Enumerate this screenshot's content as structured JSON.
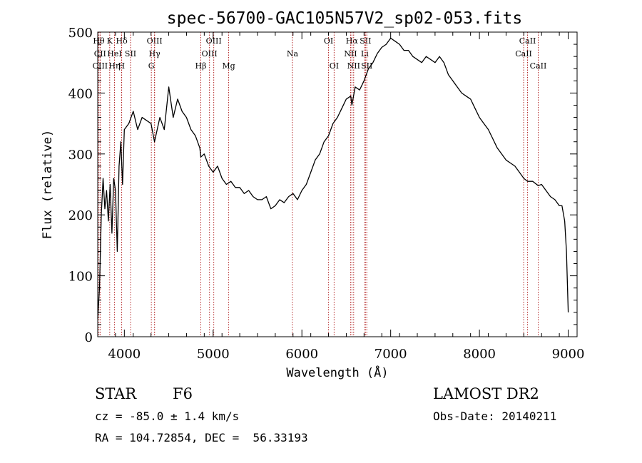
{
  "chart_data": {
    "type": "line",
    "title": "spec-56700-GAC105N57V2_sp02-053.fits",
    "xlabel": "Wavelength (Å)",
    "ylabel": "Flux (relative)",
    "xlim": [
      3700,
      9100
    ],
    "ylim": [
      0,
      500
    ],
    "x_ticks": [
      "4000",
      "5000",
      "6000",
      "7000",
      "8000",
      "9000"
    ],
    "y_ticks": [
      "0",
      "100",
      "200",
      "300",
      "400",
      "500"
    ],
    "grid": false,
    "series": [
      {
        "x": [
          3700,
          3720,
          3740,
          3760,
          3780,
          3800,
          3820,
          3840,
          3860,
          3880,
          3900,
          3920,
          3940,
          3960,
          3980,
          4000,
          4050,
          4100,
          4150,
          4200,
          4250,
          4300,
          4340,
          4400,
          4450,
          4500,
          4550,
          4600,
          4650,
          4700,
          4750,
          4800,
          4850,
          4861,
          4900,
          4950,
          5000,
          5050,
          5100,
          5150,
          5200,
          5250,
          5300,
          5350,
          5400,
          5450,
          5500,
          5550,
          5600,
          5650,
          5700,
          5750,
          5800,
          5850,
          5900,
          5950,
          6000,
          6050,
          6100,
          6150,
          6200,
          6250,
          6300,
          6350,
          6400,
          6450,
          6500,
          6550,
          6563,
          6600,
          6650,
          6700,
          6750,
          6800,
          6850,
          6900,
          6950,
          7000,
          7050,
          7100,
          7150,
          7200,
          7250,
          7300,
          7350,
          7400,
          7450,
          7500,
          7550,
          7600,
          7650,
          7700,
          7750,
          7800,
          7850,
          7900,
          7950,
          8000,
          8050,
          8100,
          8150,
          8200,
          8250,
          8300,
          8350,
          8400,
          8450,
          8500,
          8542,
          8600,
          8662,
          8700,
          8750,
          8800,
          8850,
          8900,
          8930,
          8960,
          8980,
          9000
        ],
        "y": [
          30,
          80,
          200,
          260,
          210,
          240,
          190,
          250,
          170,
          260,
          240,
          140,
          280,
          320,
          250,
          340,
          350,
          370,
          340,
          360,
          355,
          350,
          320,
          360,
          340,
          410,
          360,
          390,
          370,
          360,
          340,
          330,
          310,
          295,
          300,
          280,
          270,
          280,
          260,
          250,
          255,
          245,
          245,
          235,
          240,
          230,
          225,
          225,
          230,
          210,
          215,
          225,
          220,
          230,
          235,
          225,
          240,
          250,
          270,
          290,
          300,
          320,
          330,
          350,
          360,
          375,
          390,
          395,
          380,
          410,
          405,
          420,
          440,
          450,
          465,
          475,
          480,
          490,
          485,
          480,
          470,
          470,
          460,
          455,
          450,
          460,
          455,
          450,
          460,
          450,
          430,
          420,
          410,
          400,
          395,
          390,
          375,
          360,
          350,
          340,
          325,
          310,
          300,
          290,
          285,
          280,
          270,
          260,
          255,
          255,
          248,
          250,
          240,
          230,
          225,
          215,
          215,
          190,
          140,
          40
        ]
      }
    ],
    "lines_top": [
      {
        "x": 3712,
        "label": "Hθ"
      },
      {
        "x": 3835,
        "label": "K"
      },
      {
        "x": 3970,
        "label": "Hδ"
      },
      {
        "x": 4340,
        "label": "OIII"
      },
      {
        "x": 5007,
        "label": "OIII"
      },
      {
        "x": 6300,
        "label": "OI"
      },
      {
        "x": 6563,
        "label": "Hα"
      },
      {
        "x": 6716,
        "label": "SII"
      },
      {
        "x": 8542,
        "label": "CaII"
      }
    ],
    "lines_mid": [
      {
        "x": 3727,
        "label": "CII"
      },
      {
        "x": 3889,
        "label": "HeI"
      },
      {
        "x": 4070,
        "label": "SII"
      },
      {
        "x": 4340,
        "label": "Hγ"
      },
      {
        "x": 4959,
        "label": "OIII"
      },
      {
        "x": 5893,
        "label": "Na"
      },
      {
        "x": 6548,
        "label": "NII"
      },
      {
        "x": 6708,
        "label": "Li"
      },
      {
        "x": 8498,
        "label": "CaII"
      }
    ],
    "lines_low": [
      {
        "x": 3727,
        "label": "CIII"
      },
      {
        "x": 3889,
        "label": "Hη"
      },
      {
        "x": 3968,
        "label": "H"
      },
      {
        "x": 4304,
        "label": "G"
      },
      {
        "x": 4861,
        "label": "Hβ"
      },
      {
        "x": 5175,
        "label": "Mg"
      },
      {
        "x": 6363,
        "label": "OI"
      },
      {
        "x": 6583,
        "label": "NII"
      },
      {
        "x": 6731,
        "label": "SII"
      },
      {
        "x": 8662,
        "label": "CaII"
      }
    ],
    "line_style": {
      "color": "#b22222",
      "dash": "dotted"
    }
  },
  "footer": {
    "class_label": "STAR",
    "subclass_label": "F6",
    "survey": "LAMOST DR2",
    "cz": "cz = -85.0 ± 1.4 km/s",
    "obs_date": "Obs-Date: 20140211",
    "coords": "RA = 104.72854, DEC =  56.33193"
  }
}
